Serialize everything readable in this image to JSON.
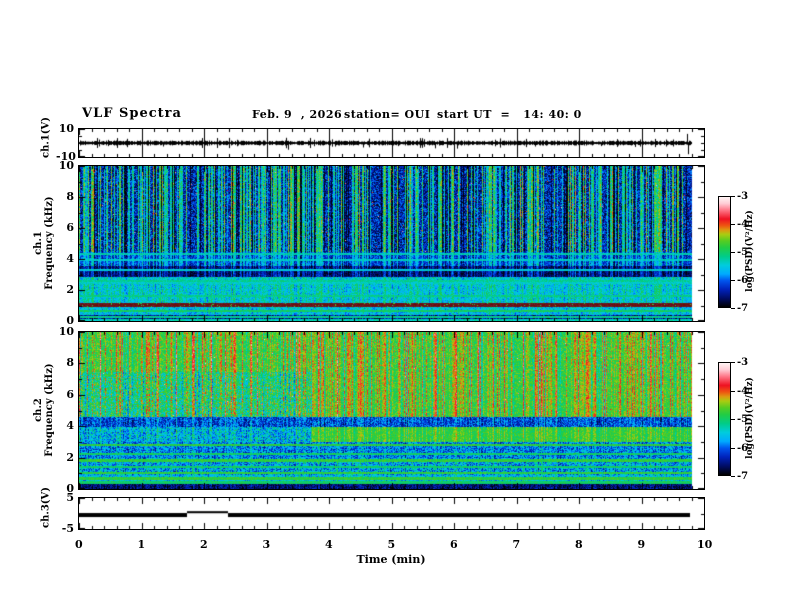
{
  "header": {
    "title": "VLF Spectra",
    "date": "Feb. 9  , 2026",
    "station": "station= OUI",
    "start_ut": "start UT  =   14: 40: 0"
  },
  "xaxis": {
    "label": "Time (min)",
    "range": [
      0,
      10
    ],
    "ticks": [
      0,
      1,
      2,
      3,
      4,
      5,
      6,
      7,
      8,
      9,
      10
    ],
    "minor_step": 0.2,
    "data_tmax": 9.8
  },
  "colorbar": {
    "label": "log(PSD)(V²/Hz)",
    "ticks": [
      "-3",
      "-4",
      "-5",
      "-6",
      "-7"
    ]
  },
  "palette": [
    [
      0.0,
      "#000000"
    ],
    [
      0.08,
      "#000d66"
    ],
    [
      0.16,
      "#0022bb"
    ],
    [
      0.24,
      "#0055ee"
    ],
    [
      0.3,
      "#00aaff"
    ],
    [
      0.38,
      "#00ccdd"
    ],
    [
      0.46,
      "#00cc88"
    ],
    [
      0.54,
      "#22cc44"
    ],
    [
      0.6,
      "#55cc22"
    ],
    [
      0.66,
      "#aacc11"
    ],
    [
      0.7,
      "#dd9911"
    ],
    [
      0.74,
      "#ee5511"
    ],
    [
      0.8,
      "#ee1122"
    ],
    [
      0.88,
      "#ff7788"
    ],
    [
      0.94,
      "#ffccd5"
    ],
    [
      1.0,
      "#fff5f5"
    ]
  ],
  "chart_data": [
    {
      "id": "ch1v",
      "type": "line",
      "title": "ch.1 voltage waveform",
      "ylabel_lines": [
        "ch.1(V)"
      ],
      "yrange": [
        -10,
        10
      ],
      "ytick_major": [
        10,
        -10
      ],
      "ytick_minor": [
        5,
        0,
        -5
      ],
      "noise_amp_v": 1.2,
      "spikes": [
        [
          1.35,
          -2.5
        ],
        [
          2.05,
          -2.0
        ],
        [
          3.35,
          -4.8
        ],
        [
          4.1,
          -2.5
        ],
        [
          4.55,
          -3.2
        ],
        [
          5.1,
          -2.2
        ],
        [
          5.7,
          -3.8
        ],
        [
          6.05,
          -4.0
        ],
        [
          7.3,
          -2.5
        ],
        [
          8.35,
          -2.2
        ],
        [
          8.9,
          -2.8
        ],
        [
          9.72,
          6.5
        ],
        [
          9.74,
          -8.0
        ]
      ],
      "grid_every_min": 1
    },
    {
      "id": "spec1",
      "type": "heatmap",
      "title": "ch.1 VLF spectrogram",
      "ylabel_lines": [
        "ch.1",
        "Frequency (kHz)"
      ],
      "yrange": [
        0,
        10
      ],
      "ytick_major": [
        0,
        2,
        4,
        6,
        8,
        10
      ],
      "ytick_minor": [
        1,
        3,
        5,
        7,
        9
      ],
      "split_min": 10,
      "streak_density": 0.42,
      "streak_min": 0.16,
      "streak_range": 0.3,
      "neg_streak_density": 0.12,
      "neg_streak": -0.16,
      "line_density": 0.07,
      "bands": [
        {
          "f": [
            4.5,
            10.0
          ],
          "base": 0.16,
          "noise": 0.14,
          "streak": 1.0
        },
        {
          "f": [
            3.6,
            4.5
          ],
          "base": 0.2,
          "noise": 0.1,
          "streak": 0.5
        },
        {
          "f": [
            2.9,
            3.6
          ],
          "base": 0.07,
          "noise": 0.07,
          "streak": 0.35
        },
        {
          "f": [
            1.2,
            2.9
          ],
          "base": 0.36,
          "noise": 0.1,
          "streak": 0.25
        },
        {
          "f": [
            0.95,
            1.2
          ],
          "base": 0.8,
          "noise": 0.04,
          "streak": 0.05,
          "dim": 0.45
        },
        {
          "f": [
            0.45,
            0.95
          ],
          "base": 0.34,
          "noise": 0.1,
          "streak": 0.2
        },
        {
          "f": [
            0.0,
            0.45
          ],
          "base": 0.1,
          "noise": 0.1,
          "streak": 0.2
        }
      ],
      "hlines": [
        {
          "f": 4.35,
          "t": 0.42
        },
        {
          "f": 3.95,
          "t": 0.4
        },
        {
          "f": 3.3,
          "t": 0.38
        },
        {
          "f": 2.62,
          "t": 0.45
        },
        {
          "f": 2.48,
          "t": 0.4
        },
        {
          "f": 1.62,
          "t": 0.46
        },
        {
          "f": 0.7,
          "t": 0.5
        },
        {
          "f": 0.3,
          "t": 0.46
        },
        {
          "f": 0.12,
          "t": 0.42
        }
      ],
      "flecks": [
        {
          "f": [
            4.5,
            10.0
          ],
          "p": 0.004,
          "t": [
            0.72,
            0.95
          ]
        },
        {
          "f": [
            0.95,
            1.2
          ],
          "p": 0.05,
          "t": [
            0.5,
            0.6
          ],
          "undim": true
        }
      ]
    },
    {
      "id": "spec2",
      "type": "heatmap",
      "title": "ch.2 VLF spectrogram",
      "ylabel_lines": [
        "ch.2",
        "Frequency (kHz)"
      ],
      "yrange": [
        0,
        10
      ],
      "ytick_major": [
        0,
        2,
        4,
        6,
        8,
        10
      ],
      "ytick_minor": [
        1,
        3,
        5,
        7,
        9
      ],
      "split_min": 3.7,
      "streak_density": 0.4,
      "streak_min": 0.1,
      "streak_range": 0.22,
      "neg_streak_density": 0.14,
      "neg_streak": -0.18,
      "line_density": 0.05,
      "bands": [
        {
          "f": [
            7.5,
            10.0
          ],
          "base": 0.55,
          "noise": 0.1,
          "streak": 0.6
        },
        {
          "f": [
            4.6,
            7.5
          ],
          "base": 0.47,
          "noise": 0.16,
          "baseR": 0.55,
          "noiseR": 0.09,
          "streak": 0.6
        },
        {
          "f": [
            3.95,
            4.6
          ],
          "base": 0.2,
          "noise": 0.12,
          "streak": 0.3
        },
        {
          "f": [
            3.0,
            3.95
          ],
          "base": 0.33,
          "noise": 0.15,
          "baseR": 0.54,
          "noiseR": 0.07,
          "streak": 0.3
        },
        {
          "f": [
            2.0,
            3.0
          ],
          "base": 0.26,
          "noise": 0.14,
          "streak": 0.25
        },
        {
          "f": [
            0.9,
            2.0
          ],
          "base": 0.3,
          "noise": 0.16,
          "streak": 0.25
        },
        {
          "f": [
            0.35,
            0.9
          ],
          "base": 0.34,
          "noise": 0.12,
          "streak": 0.2
        },
        {
          "f": [
            0.0,
            0.35
          ],
          "base": 0.08,
          "noise": 0.08,
          "streak": 0.15
        }
      ],
      "hlines": [
        {
          "f": 2.85,
          "t": 0.55
        },
        {
          "f": 2.25,
          "t": 0.5
        },
        {
          "f": 1.85,
          "t": 0.55
        },
        {
          "f": 1.45,
          "t": 0.5
        },
        {
          "f": 1.05,
          "t": 0.55
        },
        {
          "f": 0.7,
          "t": 0.55
        },
        {
          "f": 0.45,
          "t": 0.5
        }
      ],
      "flecks": [
        {
          "f": [
            4.6,
            10.0
          ],
          "p": 0.004,
          "t": [
            0.72,
            0.95
          ]
        }
      ]
    },
    {
      "id": "ch3v",
      "type": "line",
      "title": "ch.3 voltage trace",
      "ylabel_lines": [
        "ch.3(V)"
      ],
      "yrange": [
        -5,
        5
      ],
      "ytick_major": [
        5,
        -5
      ],
      "ytick_minor": [
        0
      ],
      "segments": [
        {
          "t": [
            0.0,
            1.72
          ],
          "v": -0.6,
          "lw": 4
        },
        {
          "t": [
            1.72,
            2.38
          ],
          "v": 0.5,
          "lw": 2
        },
        {
          "t": [
            2.38,
            9.78
          ],
          "v": -0.6,
          "lw": 4
        }
      ]
    }
  ]
}
